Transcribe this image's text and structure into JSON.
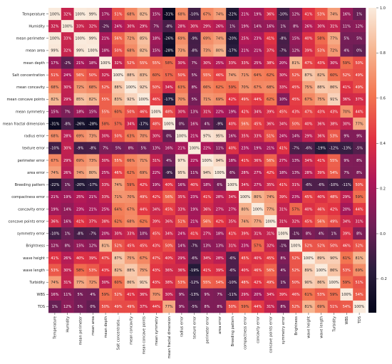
{
  "chart_data": {
    "type": "heatmap",
    "title": "",
    "xlabel": "",
    "ylabel": "",
    "grid": false,
    "legend": "colorbar-right",
    "colorbar": {
      "ticks": [
        "1.0",
        "0.8",
        "0.6",
        "0.4",
        "0.2",
        "0.0",
        "-0.2"
      ],
      "range": [
        -0.35,
        1.0
      ],
      "colors": [
        "#03051a",
        "#2c1e3e",
        "#701f57",
        "#ad1759",
        "#e13342",
        "#f37651",
        "#f6b48f",
        "#faebdd"
      ]
    },
    "x_tick_labels": [
      "Temperature",
      "Humidity",
      "mean perimeter",
      "mean area",
      "mean depth",
      "Salt concentratio...",
      "mean concavity",
      "mean concave points",
      "mean symmetry",
      "mean fractal dimension",
      "radius error",
      "texture error",
      "perimeter error",
      "area error",
      "Breeding pattern",
      "compactness error",
      "concavity error",
      "concave points error",
      "symmetry error",
      "Brightness",
      "wave height",
      "wave length",
      "Turbidity",
      "WBS",
      "TDS"
    ],
    "y_tick_labels": [
      "Temperature",
      "Humidity",
      "mean perimeter",
      "mean area",
      "mean depth",
      "Salt concentration",
      "mean concavity",
      "mean concave points",
      "mean symmetry",
      "mean fractal dimension",
      "radius error",
      "texture error",
      "perimeter error",
      "area error",
      "Breeding pattern",
      "compactness error",
      "concavity error",
      "concave points error",
      "symmetry error",
      "Brightness",
      "wave height",
      "wave length",
      "Turbidity",
      "WBS",
      "TDS"
    ],
    "values": [
      [
        100,
        32,
        100,
        99,
        17,
        51,
        68,
        82,
        15,
        -31,
        68,
        -10,
        67,
        74,
        -22,
        21,
        19,
        36,
        -10,
        12,
        41,
        53,
        74,
        16,
        1
      ],
      [
        32,
        100,
        33,
        32,
        -2,
        24,
        30,
        29,
        7,
        -8,
        28,
        30,
        29,
        26,
        1,
        19,
        14,
        16,
        1,
        8,
        26,
        30,
        31,
        11,
        12
      ],
      [
        100,
        33,
        100,
        99,
        21,
        56,
        72,
        85,
        18,
        -26,
        69,
        -9,
        69,
        74,
        -20,
        25,
        23,
        41,
        -8,
        15,
        40,
        58,
        77,
        5,
        5
      ],
      [
        99,
        32,
        99,
        100,
        18,
        50,
        68,
        82,
        15,
        -28,
        73,
        -8,
        73,
        80,
        -17,
        21,
        21,
        37,
        -7,
        12,
        39,
        53,
        72,
        4,
        0
      ],
      [
        17,
        -2,
        21,
        18,
        100,
        32,
        52,
        55,
        55,
        58,
        30,
        7,
        30,
        25,
        33,
        33,
        25,
        38,
        20,
        81,
        47,
        43,
        30,
        59,
        50
      ],
      [
        51,
        24,
        56,
        50,
        32,
        100,
        88,
        83,
        60,
        57,
        50,
        5,
        55,
        46,
        74,
        71,
        64,
        62,
        30,
        52,
        87,
        82,
        60,
        52,
        49
      ],
      [
        68,
        30,
        72,
        68,
        52,
        88,
        100,
        92,
        50,
        34,
        63,
        8,
        66,
        62,
        59,
        70,
        67,
        68,
        33,
        45,
        75,
        88,
        86,
        41,
        49
      ],
      [
        82,
        29,
        85,
        82,
        55,
        83,
        92,
        100,
        46,
        -17,
        70,
        5,
        71,
        69,
        42,
        49,
        44,
        62,
        10,
        45,
        67,
        75,
        91,
        36,
        37
      ],
      [
        15,
        7,
        18,
        15,
        55,
        60,
        50,
        46,
        100,
        48,
        30,
        13,
        31,
        22,
        19,
        42,
        34,
        39,
        45,
        43,
        47,
        43,
        43,
        70,
        44
      ],
      [
        -31,
        -8,
        -26,
        -28,
        58,
        57,
        34,
        -17,
        48,
        100,
        0,
        16,
        4,
        -9,
        40,
        56,
        45,
        36,
        34,
        50,
        40,
        36,
        38,
        30,
        77
      ],
      [
        68,
        28,
        69,
        73,
        30,
        50,
        63,
        70,
        30,
        0,
        100,
        21,
        97,
        95,
        16,
        35,
        33,
        51,
        24,
        14,
        29,
        36,
        53,
        9,
        9
      ],
      [
        -10,
        30,
        -9,
        -8,
        7,
        5,
        8,
        5,
        13,
        16,
        21,
        100,
        22,
        11,
        40,
        23,
        19,
        21,
        41,
        -7,
        -6,
        -19,
        -12,
        -13,
        -5
      ],
      [
        67,
        29,
        69,
        73,
        30,
        55,
        66,
        71,
        31,
        4,
        97,
        22,
        100,
        94,
        18,
        41,
        36,
        56,
        27,
        13,
        34,
        41,
        55,
        9,
        8
      ],
      [
        74,
        26,
        74,
        80,
        25,
        46,
        62,
        69,
        22,
        -9,
        95,
        11,
        94,
        100,
        6,
        28,
        27,
        42,
        18,
        13,
        28,
        39,
        54,
        7,
        8
      ],
      [
        -22,
        1,
        -20,
        -17,
        33,
        74,
        59,
        42,
        19,
        40,
        16,
        40,
        18,
        6,
        100,
        34,
        27,
        35,
        41,
        31,
        -6,
        -6,
        -10,
        -11,
        50
      ],
      [
        21,
        19,
        25,
        21,
        33,
        71,
        70,
        49,
        42,
        56,
        35,
        23,
        41,
        28,
        34,
        100,
        80,
        74,
        39,
        23,
        45,
        40,
        48,
        29,
        59
      ],
      [
        19,
        14,
        23,
        21,
        25,
        64,
        67,
        44,
        34,
        45,
        33,
        19,
        36,
        27,
        27,
        80,
        100,
        77,
        31,
        57,
        40,
        46,
        42,
        20,
        44
      ],
      [
        36,
        16,
        41,
        37,
        38,
        62,
        68,
        62,
        39,
        36,
        51,
        21,
        56,
        42,
        35,
        74,
        77,
        100,
        31,
        32,
        45,
        56,
        49,
        34,
        31
      ],
      [
        -10,
        1,
        -8,
        -7,
        20,
        30,
        33,
        10,
        45,
        34,
        24,
        41,
        27,
        18,
        41,
        39,
        31,
        31,
        100,
        -1,
        8,
        4,
        1,
        39,
        8
      ],
      [
        12,
        8,
        15,
        12,
        81,
        52,
        45,
        45,
        43,
        50,
        14,
        -7,
        13,
        13,
        31,
        23,
        57,
        32,
        -1,
        100,
        52,
        52,
        50,
        46,
        52
      ],
      [
        41,
        26,
        40,
        39,
        47,
        87,
        75,
        67,
        47,
        40,
        29,
        -6,
        34,
        28,
        -6,
        45,
        40,
        45,
        8,
        52,
        100,
        89,
        90,
        61,
        81
      ],
      [
        53,
        30,
        58,
        53,
        43,
        82,
        88,
        75,
        43,
        36,
        36,
        -19,
        41,
        39,
        -6,
        40,
        46,
        56,
        4,
        52,
        89,
        100,
        86,
        53,
        69
      ],
      [
        74,
        31,
        77,
        72,
        30,
        60,
        86,
        91,
        43,
        38,
        53,
        -12,
        55,
        54,
        -10,
        48,
        42,
        49,
        1,
        50,
        90,
        86,
        100,
        59,
        51
      ],
      [
        16,
        11,
        5,
        4,
        59,
        52,
        41,
        36,
        70,
        30,
        9,
        -13,
        9,
        7,
        -11,
        29,
        20,
        34,
        39,
        46,
        61,
        53,
        59,
        100,
        54
      ],
      [
        1,
        12,
        5,
        0,
        50,
        49,
        49,
        37,
        44,
        77,
        9,
        -5,
        8,
        8,
        50,
        59,
        44,
        31,
        8,
        52,
        81,
        69,
        51,
        54,
        100
      ]
    ]
  }
}
